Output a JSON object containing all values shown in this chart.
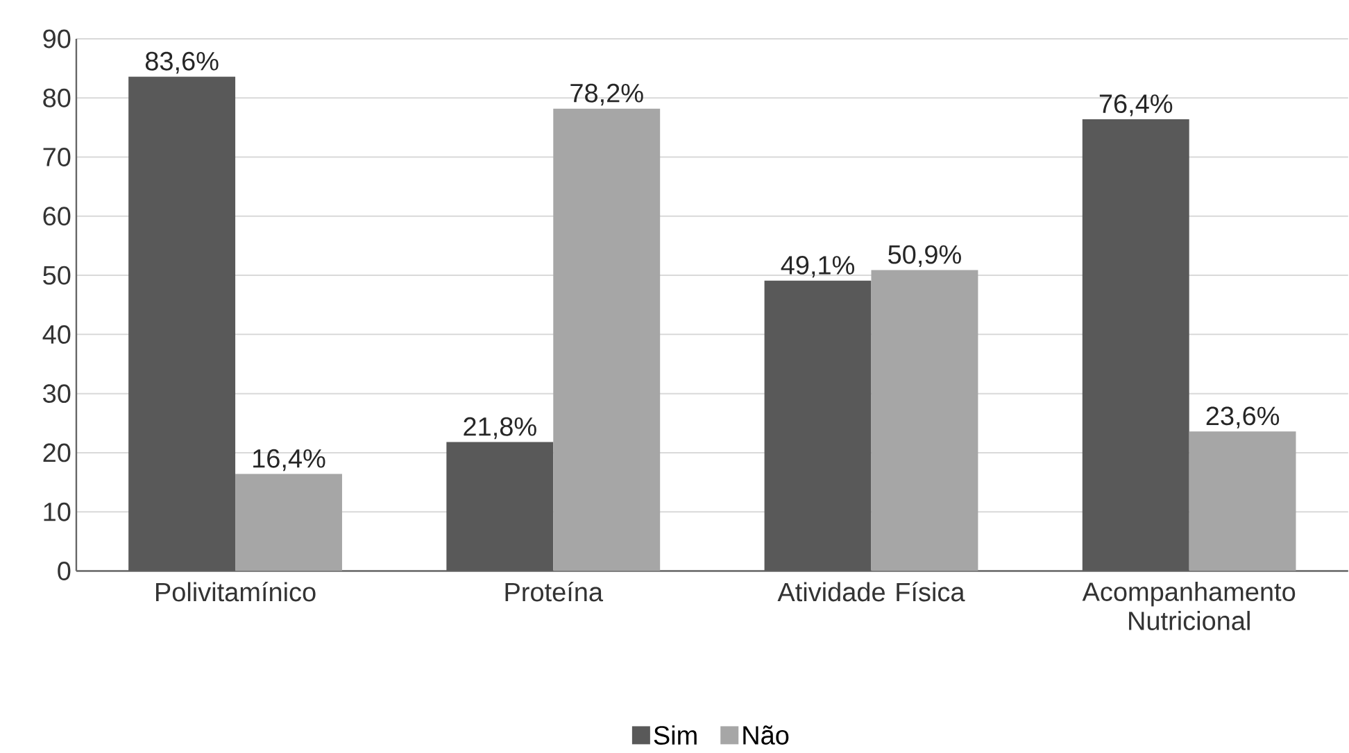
{
  "chart_data": {
    "type": "bar",
    "categories": [
      "Polivitamínico",
      "Proteína",
      "Atividade Física",
      "Acompanhamento Nutricional"
    ],
    "series": [
      {
        "name": "Sim",
        "color": "#595959",
        "values": [
          83.6,
          21.8,
          49.1,
          76.4
        ],
        "value_labels": [
          "83,6%",
          "21,8%",
          "49,1%",
          "76,4%"
        ]
      },
      {
        "name": "Não",
        "color": "#a6a6a6",
        "values": [
          16.4,
          78.2,
          50.9,
          23.6
        ],
        "value_labels": [
          "16,4%",
          "78,2%",
          "50,9%",
          "23,6%"
        ]
      }
    ],
    "ylim": [
      0,
      90
    ],
    "yticks": [
      0,
      10,
      20,
      30,
      40,
      50,
      60,
      70,
      80,
      90
    ],
    "grid": "y",
    "legend": "bottom"
  }
}
